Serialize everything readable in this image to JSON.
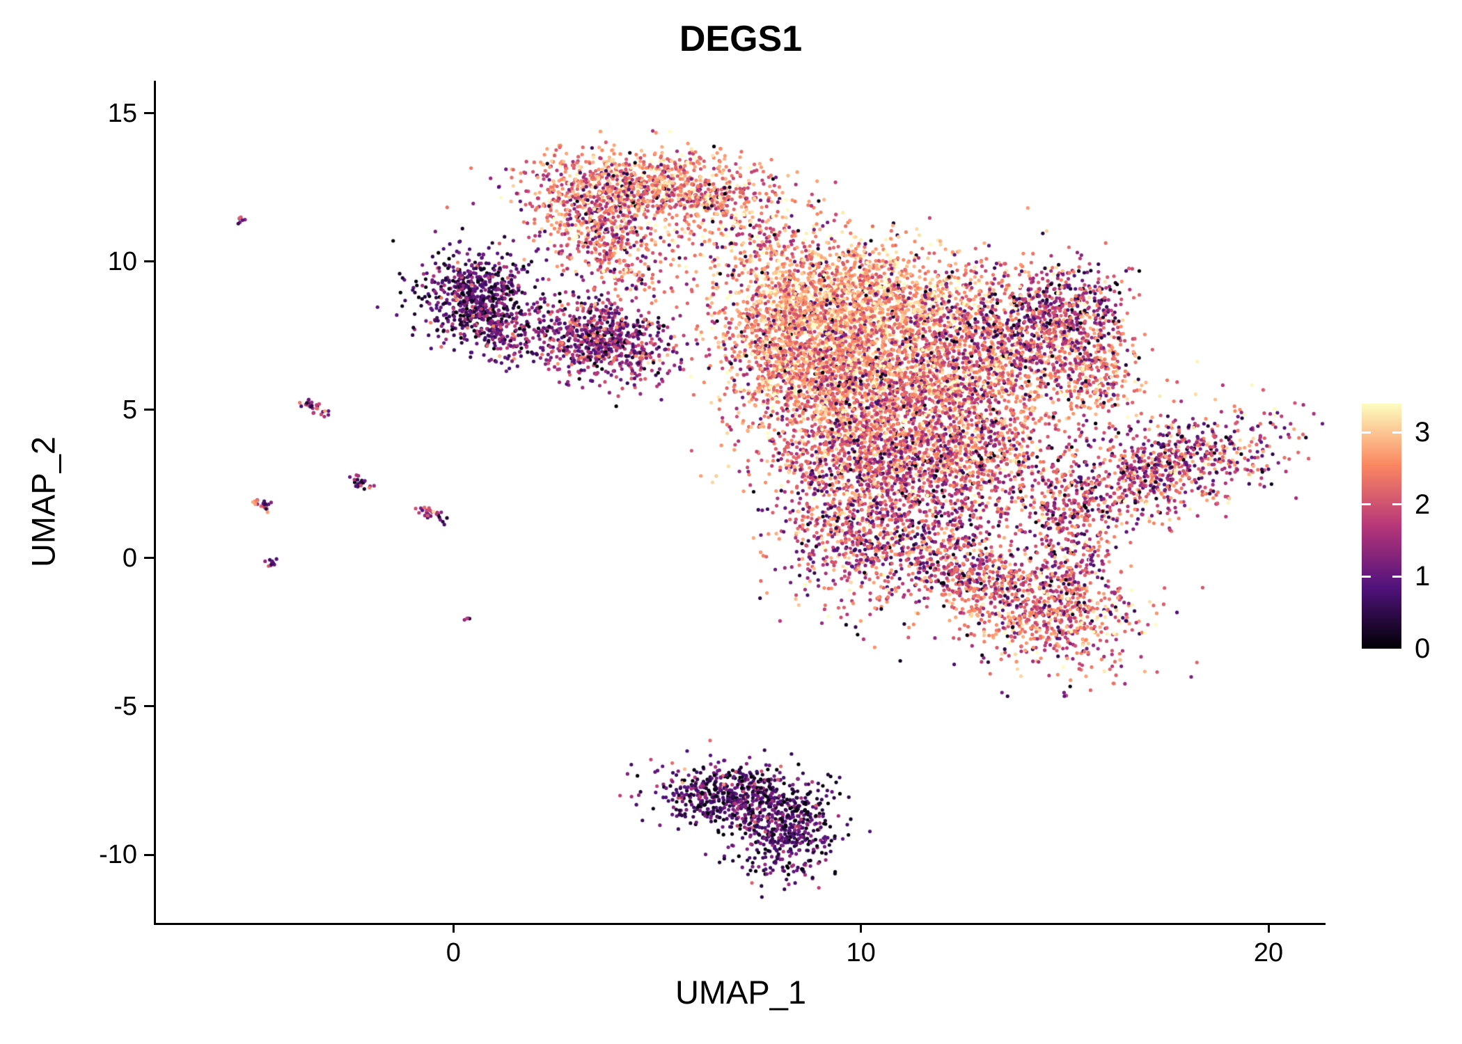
{
  "chart_data": {
    "type": "scatter",
    "title": "DEGS1",
    "xlabel": "UMAP_1",
    "ylabel": "UMAP_2",
    "xlim": [
      -7.3,
      21.4
    ],
    "ylim": [
      -12.3,
      16.1
    ],
    "x_ticks": [
      0,
      10,
      20
    ],
    "y_ticks": [
      -10,
      -5,
      0,
      5,
      10,
      15
    ],
    "grid": false,
    "legend_position": "right",
    "point_radius": 2.6,
    "seed": 42,
    "colorbar": {
      "label": "",
      "ticks": [
        0,
        1,
        2,
        3
      ],
      "vmin": 0,
      "vmax": 3.4,
      "colormap": "magma",
      "anchors": [
        "#000004",
        "#51127c",
        "#b63679",
        "#fb8761",
        "#fcfdbf"
      ]
    },
    "clusters": [
      {
        "name": "main-top",
        "cx": 10.0,
        "cy": 8.8,
        "sx": 1.7,
        "sy": 1.0,
        "rot": -8,
        "n": 1700,
        "mean": 2.7,
        "sd": 0.5,
        "low_frac": 0.05
      },
      {
        "name": "main-left",
        "cx": 8.3,
        "cy": 7.6,
        "sx": 0.9,
        "sy": 1.0,
        "rot": 0,
        "n": 700,
        "mean": 2.55,
        "sd": 0.5,
        "low_frac": 0.06
      },
      {
        "name": "main-mid-left",
        "cx": 9.3,
        "cy": 5.9,
        "sx": 1.2,
        "sy": 1.2,
        "rot": 0,
        "n": 1300,
        "mean": 2.5,
        "sd": 0.55,
        "low_frac": 0.07
      },
      {
        "name": "main-mid-right",
        "cx": 12.0,
        "cy": 5.9,
        "sx": 1.5,
        "sy": 1.3,
        "rot": 0,
        "n": 1700,
        "mean": 2.4,
        "sd": 0.6,
        "low_frac": 0.09
      },
      {
        "name": "main-right-orange",
        "cx": 15.7,
        "cy": 6.4,
        "sx": 0.65,
        "sy": 0.9,
        "rot": 0,
        "n": 300,
        "mean": 2.4,
        "sd": 0.5,
        "low_frac": 0.08
      },
      {
        "name": "main-right-purple",
        "cx": 13.9,
        "cy": 7.7,
        "sx": 1.0,
        "sy": 1.0,
        "rot": 0,
        "n": 600,
        "mean": 1.8,
        "sd": 0.7,
        "low_frac": 0.16
      },
      {
        "name": "main-upper-right-purple",
        "cx": 15.3,
        "cy": 8.4,
        "sx": 0.7,
        "sy": 0.75,
        "rot": 0,
        "n": 280,
        "mean": 1.6,
        "sd": 0.7,
        "low_frac": 0.18
      },
      {
        "name": "main-lower",
        "cx": 10.2,
        "cy": 3.4,
        "sx": 1.3,
        "sy": 1.0,
        "rot": 0,
        "n": 900,
        "mean": 2.25,
        "sd": 0.6,
        "low_frac": 0.1
      },
      {
        "name": "main-lower-right",
        "cx": 12.7,
        "cy": 3.1,
        "sx": 1.2,
        "sy": 1.0,
        "rot": 0,
        "n": 650,
        "mean": 2.1,
        "sd": 0.65,
        "low_frac": 0.12
      },
      {
        "name": "tail-down",
        "cx": 9.8,
        "cy": 0.9,
        "sx": 0.9,
        "sy": 1.3,
        "rot": 0,
        "n": 550,
        "mean": 2.05,
        "sd": 0.7,
        "low_frac": 0.14
      },
      {
        "name": "tail-down-2",
        "cx": 11.5,
        "cy": 0.6,
        "sx": 1.2,
        "sy": 0.9,
        "rot": 0,
        "n": 380,
        "mean": 1.95,
        "sd": 0.7,
        "low_frac": 0.15
      },
      {
        "name": "bridge-low-right",
        "cx": 12.5,
        "cy": -0.6,
        "sx": 0.8,
        "sy": 0.55,
        "rot": -20,
        "n": 220,
        "mean": 2.0,
        "sd": 0.65,
        "low_frac": 0.14
      },
      {
        "name": "lower-right-blob",
        "cx": 14.4,
        "cy": -1.7,
        "sx": 1.25,
        "sy": 0.95,
        "rot": -28,
        "n": 850,
        "mean": 2.3,
        "sd": 0.6,
        "low_frac": 0.11
      },
      {
        "name": "lower-right-link",
        "cx": 15.3,
        "cy": -0.1,
        "sx": 0.5,
        "sy": 0.6,
        "rot": 0,
        "n": 130,
        "mean": 1.9,
        "sd": 0.65,
        "low_frac": 0.14
      },
      {
        "name": "right-wing",
        "cx": 17.4,
        "cy": 3.0,
        "sx": 1.55,
        "sy": 0.8,
        "rot": 23,
        "n": 850,
        "mean": 1.95,
        "sd": 0.7,
        "low_frac": 0.14
      },
      {
        "name": "right-wing-tip",
        "cx": 15.2,
        "cy": 1.6,
        "sx": 0.55,
        "sy": 0.5,
        "rot": 20,
        "n": 140,
        "mean": 1.9,
        "sd": 0.65,
        "low_frac": 0.14
      },
      {
        "name": "top-cluster",
        "cx": 4.6,
        "cy": 12.5,
        "sx": 1.35,
        "sy": 0.65,
        "rot": -4,
        "n": 950,
        "mean": 2.45,
        "sd": 0.55,
        "low_frac": 0.07
      },
      {
        "name": "top-cluster-left",
        "cx": 3.3,
        "cy": 11.4,
        "sx": 0.7,
        "sy": 0.8,
        "rot": 0,
        "n": 320,
        "mean": 2.2,
        "sd": 0.6,
        "low_frac": 0.1
      },
      {
        "name": "top-trail",
        "cx": 4.1,
        "cy": 10.3,
        "sx": 0.55,
        "sy": 0.7,
        "rot": 0,
        "n": 160,
        "mean": 2.1,
        "sd": 0.65,
        "low_frac": 0.12
      },
      {
        "name": "top-right-trail",
        "cx": 6.6,
        "cy": 12.2,
        "sx": 0.75,
        "sy": 0.55,
        "rot": 0,
        "n": 180,
        "mean": 2.35,
        "sd": 0.6,
        "low_frac": 0.08
      },
      {
        "name": "mid-sparse",
        "cx": 7.6,
        "cy": 10.9,
        "sx": 0.9,
        "sy": 0.7,
        "rot": 0,
        "n": 130,
        "mean": 2.3,
        "sd": 0.6,
        "low_frac": 0.1
      },
      {
        "name": "mid-left-purple",
        "cx": 3.6,
        "cy": 7.4,
        "sx": 0.95,
        "sy": 0.65,
        "rot": -12,
        "n": 750,
        "mean": 1.5,
        "sd": 0.6,
        "low_frac": 0.2
      },
      {
        "name": "left-dark",
        "cx": 0.6,
        "cy": 8.8,
        "sx": 0.75,
        "sy": 0.8,
        "rot": 0,
        "n": 650,
        "mean": 0.95,
        "sd": 0.65,
        "low_frac": 0.35
      },
      {
        "name": "left-dark-tail",
        "cx": 1.3,
        "cy": 7.6,
        "sx": 0.5,
        "sy": 0.5,
        "rot": 0,
        "n": 150,
        "mean": 1.3,
        "sd": 0.7,
        "low_frac": 0.25
      },
      {
        "name": "sparse-mid",
        "cx": 5.6,
        "cy": 9.7,
        "sx": 0.9,
        "sy": 0.8,
        "rot": 0,
        "n": 70,
        "mean": 2.1,
        "sd": 0.6,
        "low_frac": 0.12
      },
      {
        "name": "bottom-dark-a",
        "cx": 6.9,
        "cy": -8.1,
        "sx": 0.95,
        "sy": 0.55,
        "rot": -8,
        "n": 620,
        "mean": 0.85,
        "sd": 0.6,
        "low_frac": 0.32
      },
      {
        "name": "bottom-dark-b",
        "cx": 8.2,
        "cy": -9.3,
        "sx": 0.6,
        "sy": 0.8,
        "rot": -15,
        "n": 380,
        "mean": 0.8,
        "sd": 0.6,
        "low_frac": 0.32
      },
      {
        "name": "streak-1",
        "cx": -5.25,
        "cy": 11.4,
        "sx": 0.07,
        "sy": 0.07,
        "rot": 0,
        "n": 7,
        "mean": 1.3,
        "sd": 0.5,
        "low_frac": 0.2
      },
      {
        "name": "streak-2",
        "cx": -3.45,
        "cy": 5.1,
        "sx": 0.2,
        "sy": 0.09,
        "rot": -35,
        "n": 26,
        "mean": 1.6,
        "sd": 0.6,
        "low_frac": 0.15
      },
      {
        "name": "streak-3",
        "cx": -2.25,
        "cy": 2.55,
        "sx": 0.16,
        "sy": 0.08,
        "rot": -35,
        "n": 20,
        "mean": 1.4,
        "sd": 0.6,
        "low_frac": 0.2
      },
      {
        "name": "streak-4",
        "cx": -4.65,
        "cy": 1.75,
        "sx": 0.18,
        "sy": 0.09,
        "rot": -35,
        "n": 22,
        "mean": 1.7,
        "sd": 0.6,
        "low_frac": 0.15
      },
      {
        "name": "streak-5",
        "cx": -4.5,
        "cy": -0.15,
        "sx": 0.08,
        "sy": 0.08,
        "rot": 0,
        "n": 10,
        "mean": 1.0,
        "sd": 0.5,
        "low_frac": 0.3
      },
      {
        "name": "streak-6",
        "cx": -0.6,
        "cy": 1.55,
        "sx": 0.22,
        "sy": 0.09,
        "rot": -30,
        "n": 26,
        "mean": 1.5,
        "sd": 0.6,
        "low_frac": 0.2
      },
      {
        "name": "dot-1",
        "cx": 0.35,
        "cy": -2.05,
        "sx": 0.05,
        "sy": 0.05,
        "rot": 0,
        "n": 4,
        "mean": 1.2,
        "sd": 0.4,
        "low_frac": 0.2
      }
    ]
  }
}
